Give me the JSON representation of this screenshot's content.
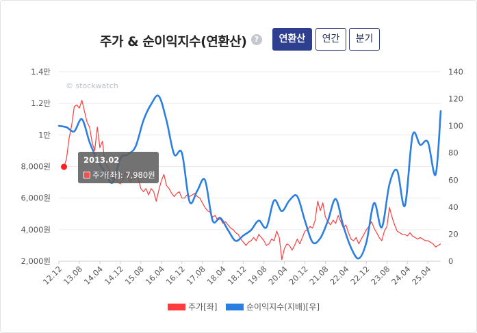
{
  "header": {
    "title": "주가 & 순이익지수(연환산)",
    "help_icon": "question-circle-icon",
    "tabs": [
      {
        "label": "연환산",
        "active": true
      },
      {
        "label": "연간",
        "active": false
      },
      {
        "label": "분기",
        "active": false
      }
    ]
  },
  "watermark": "© stockwatch",
  "tooltip": {
    "date": "2013.02",
    "series_label": "주가[좌]",
    "value_text": "7,980원"
  },
  "chart_data": {
    "type": "line",
    "x_tick_labels": [
      "12.12",
      "13.08",
      "14.04",
      "14.12",
      "15.08",
      "16.04",
      "16.12",
      "17.08",
      "18.04",
      "18.12",
      "19.08",
      "20.04",
      "20.12",
      "21.08",
      "22.04",
      "22.12",
      "23.08",
      "24.04",
      "25.04"
    ],
    "x_range": [
      "2012-12",
      "2025-05"
    ],
    "left_axis": {
      "label": "주가[좌]",
      "ylim": [
        2000,
        14000
      ],
      "tick_values": [
        2000,
        4000,
        6000,
        8000,
        10000,
        12000,
        14000
      ],
      "tick_labels": [
        "2,000원",
        "4,000원",
        "6,000원",
        "8,000원",
        "1만",
        "1.2만",
        "1.4만"
      ]
    },
    "right_axis": {
      "label": "순이익지수(지배)[우]",
      "ylim": [
        0,
        140
      ],
      "tick_values": [
        0,
        20,
        40,
        60,
        80,
        100,
        120,
        140
      ],
      "tick_labels": [
        "0",
        "20",
        "40",
        "60",
        "80",
        "100",
        "120",
        "140"
      ]
    },
    "grid": true,
    "legend_position": "bottom",
    "highlight_point": {
      "date": "2013-02",
      "value": 7980
    },
    "series": [
      {
        "name": "주가[좌]",
        "axis": "left",
        "color": "#ff3b3b",
        "points": [
          [
            "2013-02",
            7980
          ],
          [
            "2013-03",
            8500
          ],
          [
            "2013-04",
            9800
          ],
          [
            "2013-05",
            10600
          ],
          [
            "2013-06",
            11800
          ],
          [
            "2013-07",
            11900
          ],
          [
            "2013-08",
            11700
          ],
          [
            "2013-09",
            12200
          ],
          [
            "2013-10",
            11500
          ],
          [
            "2013-11",
            10800
          ],
          [
            "2013-12",
            10500
          ],
          [
            "2014-01",
            9500
          ],
          [
            "2014-02",
            9000
          ],
          [
            "2014-03",
            10500
          ],
          [
            "2014-04",
            9200
          ],
          [
            "2014-05",
            9600
          ],
          [
            "2014-06",
            8200
          ],
          [
            "2014-07",
            8000
          ],
          [
            "2014-08",
            7600
          ],
          [
            "2014-09",
            7200
          ],
          [
            "2014-10",
            7500
          ],
          [
            "2014-11",
            7000
          ],
          [
            "2014-12",
            6900
          ],
          [
            "2015-01",
            7200
          ],
          [
            "2015-02",
            7600
          ],
          [
            "2015-03",
            7300
          ],
          [
            "2015-04",
            7000
          ],
          [
            "2015-05",
            7500
          ],
          [
            "2015-06",
            7700
          ],
          [
            "2015-07",
            7200
          ],
          [
            "2015-08",
            6600
          ],
          [
            "2015-09",
            6400
          ],
          [
            "2015-10",
            6600
          ],
          [
            "2015-11",
            6200
          ],
          [
            "2015-12",
            6600
          ],
          [
            "2016-01",
            6400
          ],
          [
            "2016-02",
            5800
          ],
          [
            "2016-03",
            6500
          ],
          [
            "2016-04",
            7100
          ],
          [
            "2016-05",
            7500
          ],
          [
            "2016-06",
            6800
          ],
          [
            "2016-07",
            6600
          ],
          [
            "2016-08",
            6300
          ],
          [
            "2016-09",
            6100
          ],
          [
            "2016-10",
            6300
          ],
          [
            "2016-11",
            6400
          ],
          [
            "2016-12",
            6000
          ],
          [
            "2017-01",
            6000
          ],
          [
            "2017-02",
            6200
          ],
          [
            "2017-03",
            6100
          ],
          [
            "2017-04",
            6200
          ],
          [
            "2017-05",
            6300
          ],
          [
            "2017-06",
            6100
          ],
          [
            "2017-07",
            6000
          ],
          [
            "2017-08",
            5700
          ],
          [
            "2017-09",
            5400
          ],
          [
            "2017-10",
            5200
          ],
          [
            "2017-11",
            5100
          ],
          [
            "2017-12",
            4800
          ],
          [
            "2018-01",
            4900
          ],
          [
            "2018-02",
            4600
          ],
          [
            "2018-03",
            4700
          ],
          [
            "2018-04",
            4400
          ],
          [
            "2018-05",
            4500
          ],
          [
            "2018-06",
            4300
          ],
          [
            "2018-07",
            4100
          ],
          [
            "2018-08",
            4000
          ],
          [
            "2018-09",
            3800
          ],
          [
            "2018-10",
            3700
          ],
          [
            "2018-11",
            3400
          ],
          [
            "2018-12",
            3200
          ],
          [
            "2019-01",
            3000
          ],
          [
            "2019-02",
            3200
          ],
          [
            "2019-03",
            3300
          ],
          [
            "2019-04",
            3500
          ],
          [
            "2019-05",
            3300
          ],
          [
            "2019-06",
            3700
          ],
          [
            "2019-07",
            3500
          ],
          [
            "2019-08",
            3300
          ],
          [
            "2019-09",
            3000
          ],
          [
            "2019-10",
            3100
          ],
          [
            "2019-11",
            3400
          ],
          [
            "2019-12",
            3300
          ],
          [
            "2020-01",
            3900
          ],
          [
            "2020-02",
            3500
          ],
          [
            "2020-03",
            2100
          ],
          [
            "2020-04",
            2800
          ],
          [
            "2020-05",
            3100
          ],
          [
            "2020-06",
            3000
          ],
          [
            "2020-07",
            2700
          ],
          [
            "2020-08",
            3000
          ],
          [
            "2020-09",
            3400
          ],
          [
            "2020-10",
            3100
          ],
          [
            "2020-11",
            3500
          ],
          [
            "2020-12",
            3900
          ],
          [
            "2021-01",
            4000
          ],
          [
            "2021-02",
            4200
          ],
          [
            "2021-03",
            4100
          ],
          [
            "2021-04",
            4600
          ],
          [
            "2021-05",
            5800
          ],
          [
            "2021-06",
            5200
          ],
          [
            "2021-07",
            5700
          ],
          [
            "2021-08",
            4800
          ],
          [
            "2021-09",
            4500
          ],
          [
            "2021-10",
            4300
          ],
          [
            "2021-11",
            4600
          ],
          [
            "2021-12",
            4400
          ],
          [
            "2022-01",
            4900
          ],
          [
            "2022-02",
            4500
          ],
          [
            "2022-03",
            4100
          ],
          [
            "2022-04",
            4300
          ],
          [
            "2022-05",
            3800
          ],
          [
            "2022-06",
            3400
          ],
          [
            "2022-07",
            3300
          ],
          [
            "2022-08",
            3500
          ],
          [
            "2022-09",
            3100
          ],
          [
            "2022-10",
            3400
          ],
          [
            "2022-11",
            3700
          ],
          [
            "2022-12",
            4000
          ],
          [
            "2023-01",
            4200
          ],
          [
            "2023-02",
            4500
          ],
          [
            "2023-03",
            4100
          ],
          [
            "2023-04",
            3800
          ],
          [
            "2023-05",
            3500
          ],
          [
            "2023-06",
            3300
          ],
          [
            "2023-07",
            3900
          ],
          [
            "2023-08",
            4200
          ],
          [
            "2023-09",
            5400
          ],
          [
            "2023-10",
            4800
          ],
          [
            "2023-11",
            4300
          ],
          [
            "2023-12",
            3900
          ],
          [
            "2024-01",
            3800
          ],
          [
            "2024-02",
            3700
          ],
          [
            "2024-03",
            3700
          ],
          [
            "2024-04",
            3600
          ],
          [
            "2024-05",
            3800
          ],
          [
            "2024-06",
            3600
          ],
          [
            "2024-07",
            3500
          ],
          [
            "2024-08",
            3400
          ],
          [
            "2024-09",
            3500
          ],
          [
            "2024-10",
            3400
          ],
          [
            "2024-11",
            3300
          ],
          [
            "2024-12",
            3300
          ],
          [
            "2025-01",
            3200
          ],
          [
            "2025-02",
            3100
          ],
          [
            "2025-03",
            2900
          ],
          [
            "2025-04",
            3000
          ],
          [
            "2025-05",
            3100
          ]
        ]
      },
      {
        "name": "순이익지수(지배)[우]",
        "axis": "right",
        "color": "#2b7fe0",
        "points": [
          [
            "2012-12",
            100
          ],
          [
            "2013-03",
            99
          ],
          [
            "2013-06",
            96
          ],
          [
            "2013-09",
            105
          ],
          [
            "2013-12",
            88
          ],
          [
            "2014-03",
            75
          ],
          [
            "2014-06",
            66
          ],
          [
            "2014-09",
            58
          ],
          [
            "2014-12",
            76
          ],
          [
            "2015-03",
            79
          ],
          [
            "2015-06",
            85
          ],
          [
            "2015-09",
            104
          ],
          [
            "2015-12",
            116
          ],
          [
            "2016-03",
            122
          ],
          [
            "2016-06",
            104
          ],
          [
            "2016-09",
            79
          ],
          [
            "2016-12",
            80
          ],
          [
            "2017-03",
            44
          ],
          [
            "2017-06",
            52
          ],
          [
            "2017-09",
            60
          ],
          [
            "2017-12",
            30
          ],
          [
            "2018-03",
            32
          ],
          [
            "2018-06",
            23
          ],
          [
            "2018-09",
            15
          ],
          [
            "2018-12",
            19
          ],
          [
            "2019-03",
            23
          ],
          [
            "2019-06",
            30
          ],
          [
            "2019-09",
            25
          ],
          [
            "2019-12",
            45
          ],
          [
            "2020-03",
            37
          ],
          [
            "2020-06",
            45
          ],
          [
            "2020-09",
            48
          ],
          [
            "2020-12",
            30
          ],
          [
            "2021-03",
            14
          ],
          [
            "2021-06",
            17
          ],
          [
            "2021-09",
            30
          ],
          [
            "2021-12",
            46
          ],
          [
            "2022-03",
            26
          ],
          [
            "2022-06",
            10
          ],
          [
            "2022-09",
            2
          ],
          [
            "2022-12",
            14
          ],
          [
            "2023-03",
            43
          ],
          [
            "2023-06",
            25
          ],
          [
            "2023-09",
            57
          ],
          [
            "2023-12",
            67
          ],
          [
            "2024-03",
            41
          ],
          [
            "2024-06",
            93
          ],
          [
            "2024-09",
            86
          ],
          [
            "2024-12",
            88
          ],
          [
            "2025-03",
            64
          ],
          [
            "2025-05",
            111
          ]
        ]
      }
    ]
  },
  "legend": {
    "items": [
      {
        "label": "주가[좌]",
        "color": "#ff3b3b"
      },
      {
        "label": "순이익지수(지배)[우]",
        "color": "#2b7fe0"
      }
    ]
  }
}
